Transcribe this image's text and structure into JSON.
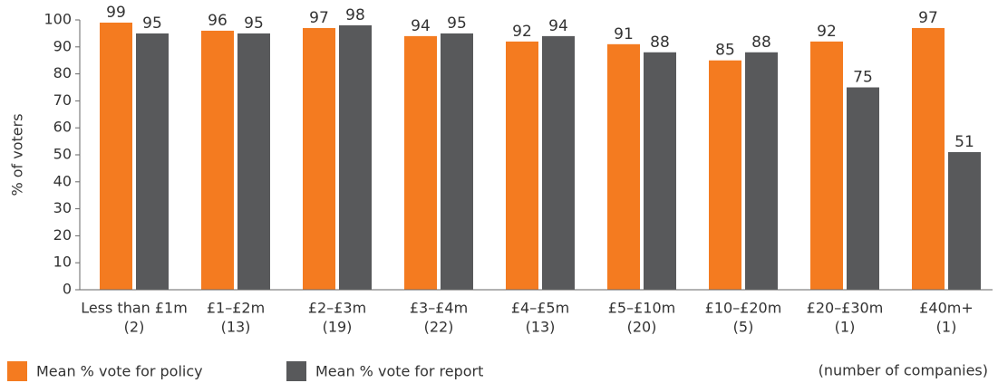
{
  "chart_data": {
    "type": "bar",
    "y_label": "% of voters",
    "categories": [
      "Less than £1m",
      "£1–£2m",
      "£2–£3m",
      "£3–£4m",
      "£4–£5m",
      "£5–£10m",
      "£10–£20m",
      "£20–£30m",
      "£40m+"
    ],
    "category_notes": [
      "(2)",
      "(13)",
      "(19)",
      "(22)",
      "(13)",
      "(20)",
      "(5)",
      "(1)",
      "(1)"
    ],
    "series": [
      {
        "name": "Mean % vote for policy",
        "color": "#f47b20",
        "values": [
          99,
          96,
          97,
          94,
          92,
          91,
          85,
          92,
          97
        ]
      },
      {
        "name": "Mean % vote for report",
        "color": "#58595b",
        "values": [
          95,
          95,
          98,
          95,
          94,
          88,
          88,
          75,
          51
        ]
      }
    ],
    "annotation": "(number of companies)",
    "ylim": [
      0,
      100
    ],
    "yticks": [
      0,
      10,
      20,
      30,
      40,
      50,
      60,
      70,
      80,
      90,
      100
    ],
    "grid": false,
    "legend": "bottom"
  }
}
